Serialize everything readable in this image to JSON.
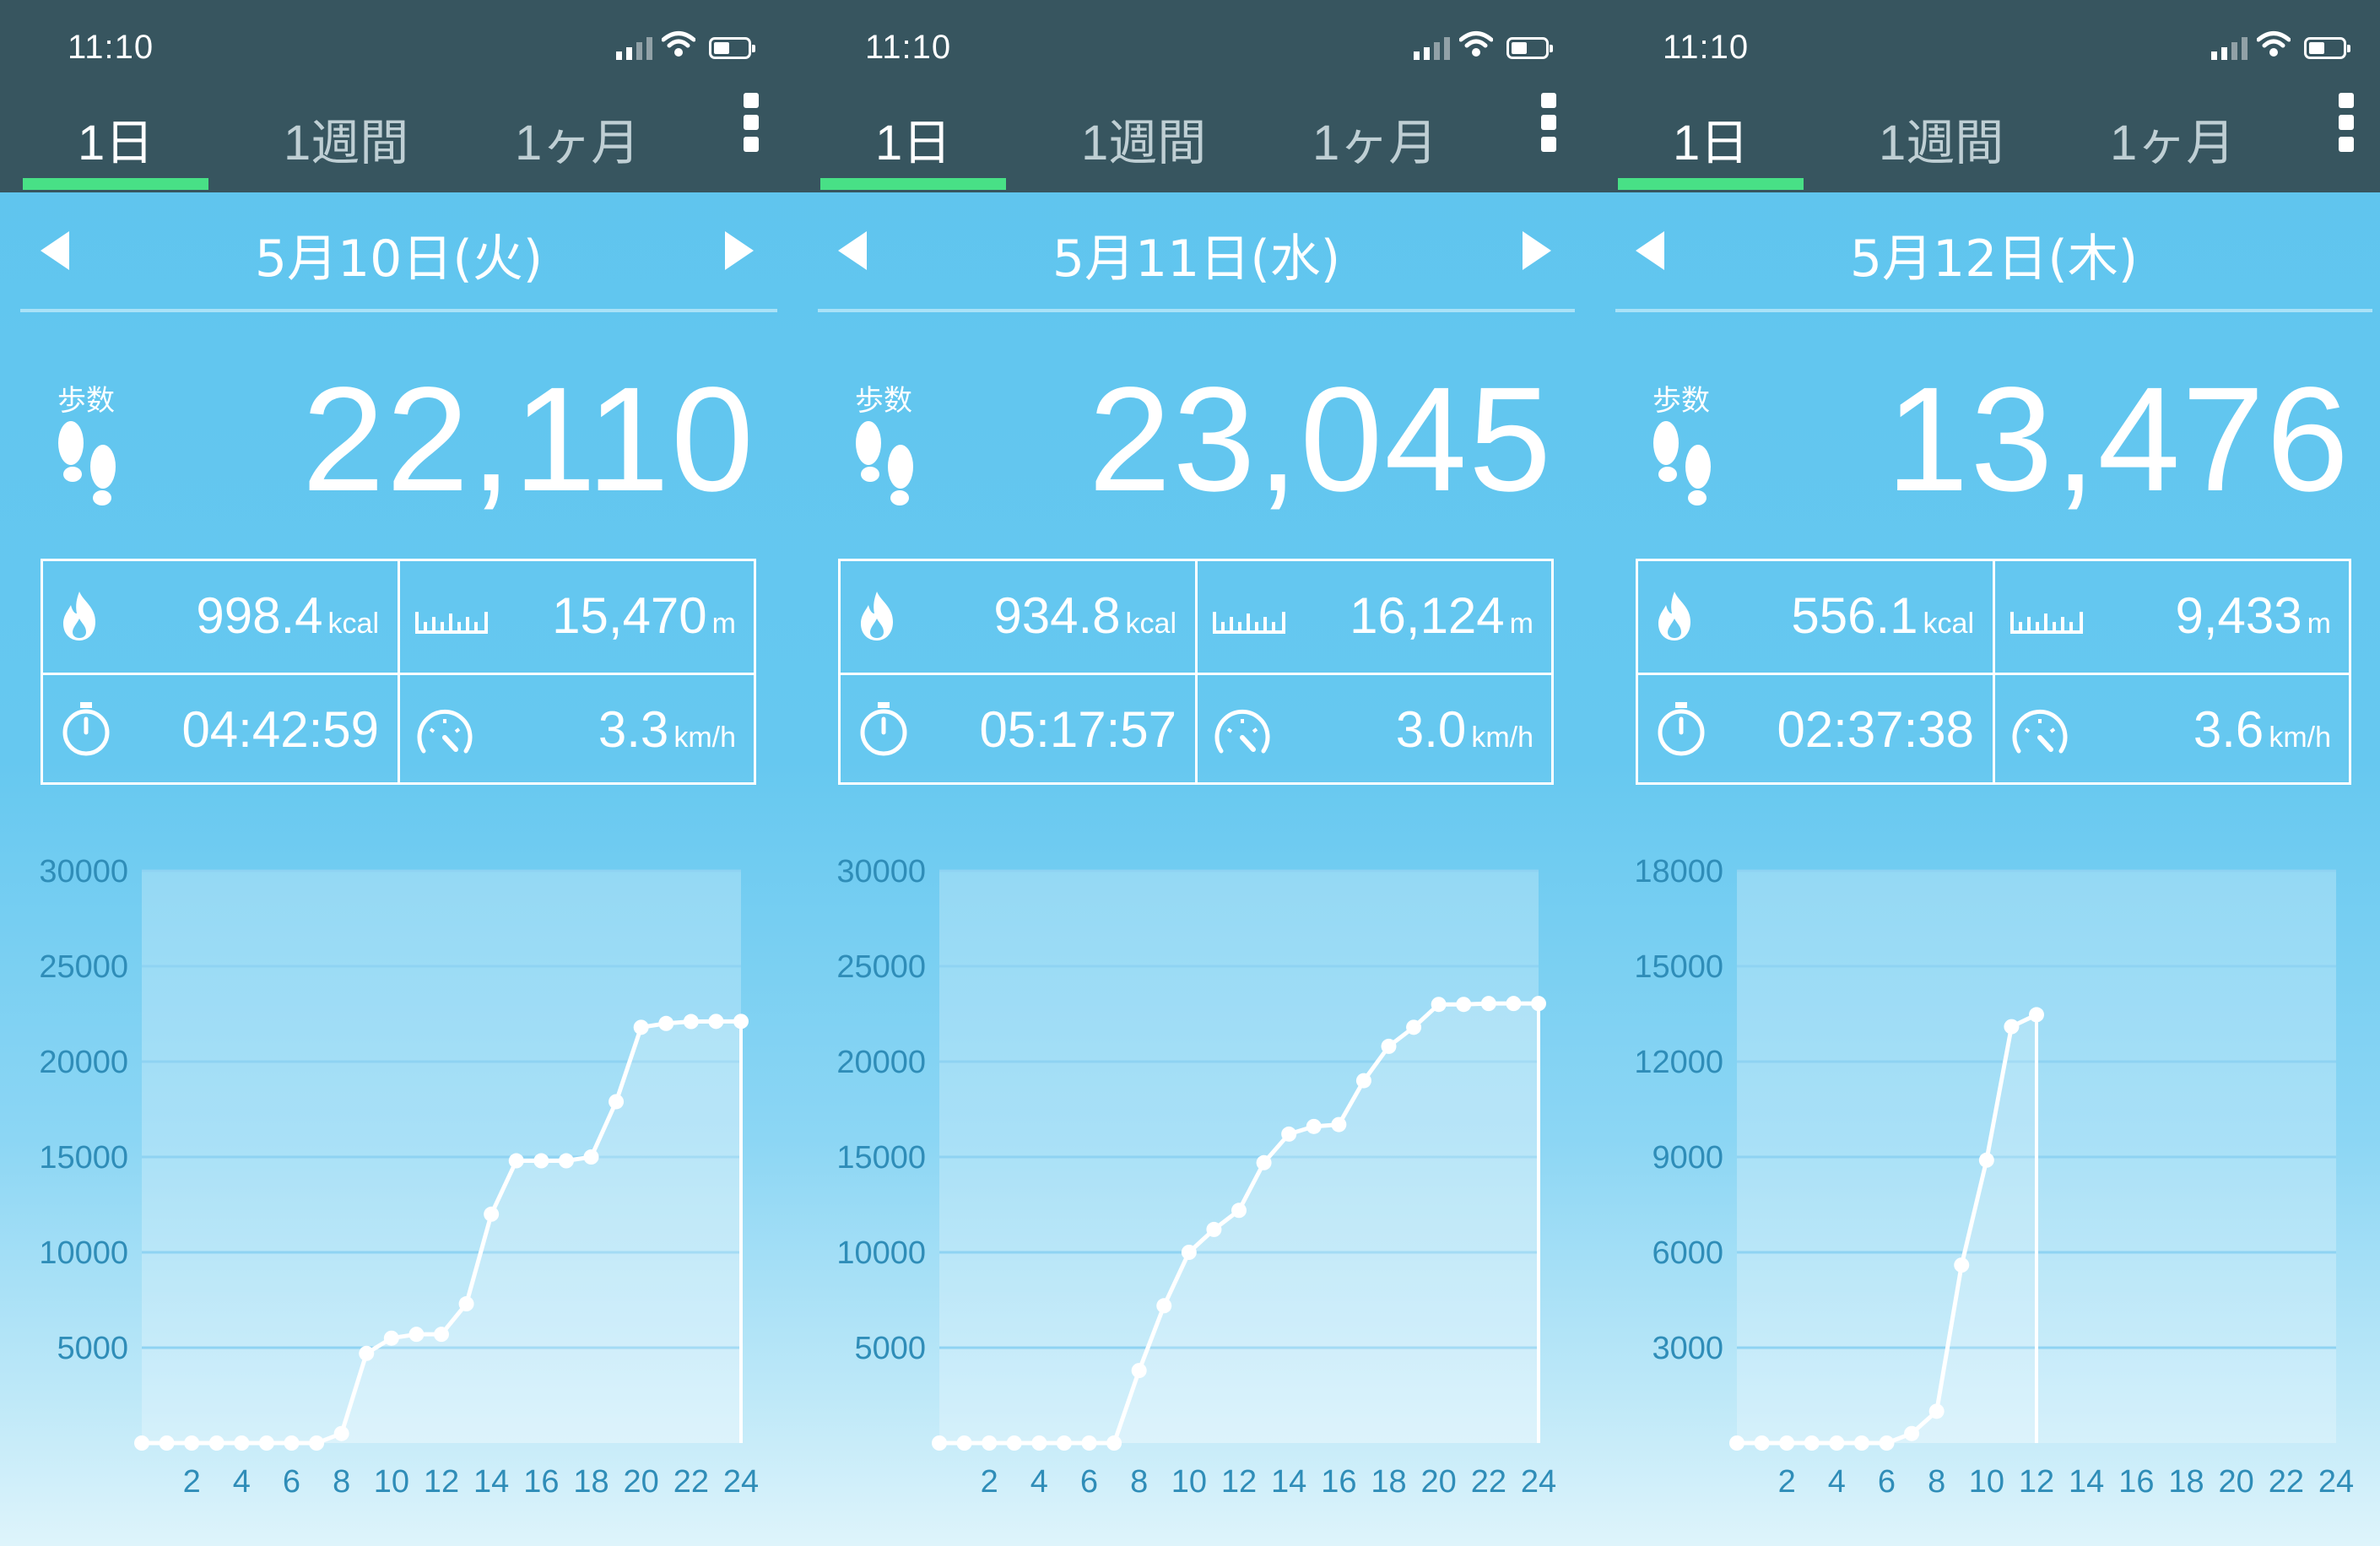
{
  "status": {
    "time": "11:10"
  },
  "tabs": [
    "1日",
    "1週間",
    "1ヶ月"
  ],
  "active_tab": 0,
  "colors": {
    "header": "#37555f",
    "tab_indicator": "#48e086",
    "text": "#ffffff"
  },
  "icons": [
    "signal-icon",
    "wifi-icon",
    "battery-icon",
    "more-menu-icon",
    "prev-day-arrow-icon",
    "next-day-arrow-icon",
    "footprints-icon",
    "flame-icon",
    "ruler-icon",
    "stopwatch-icon",
    "speedometer-icon"
  ],
  "panels": [
    {
      "date": "5月10日(火)",
      "show_next": true,
      "steps_label": "歩数",
      "steps": "22,110",
      "calories": "998.4",
      "calories_unit": "kcal",
      "distance": "15,470",
      "distance_unit": "m",
      "duration": "04:42:59",
      "speed": "3.3",
      "speed_unit": "km/h"
    },
    {
      "date": "5月11日(水)",
      "show_next": true,
      "steps_label": "歩数",
      "steps": "23,045",
      "calories": "934.8",
      "calories_unit": "kcal",
      "distance": "16,124",
      "distance_unit": "m",
      "duration": "05:17:57",
      "speed": "3.0",
      "speed_unit": "km/h"
    },
    {
      "date": "5月12日(木)",
      "show_next": false,
      "steps_label": "歩数",
      "steps": "13,476",
      "calories": "556.1",
      "calories_unit": "kcal",
      "distance": "9,433",
      "distance_unit": "m",
      "duration": "02:37:38",
      "speed": "3.6",
      "speed_unit": "km/h"
    }
  ],
  "chart_data": [
    {
      "type": "line",
      "title": "",
      "xlabel": "",
      "ylabel": "",
      "x_ticks": [
        "2",
        "4",
        "6",
        "8",
        "10",
        "12",
        "14",
        "16",
        "18",
        "20",
        "22",
        "24"
      ],
      "y_ticks": [
        "5000",
        "10000",
        "15000",
        "20000",
        "25000",
        "30000"
      ],
      "xlim": [
        0,
        24
      ],
      "ylim": [
        0,
        30000
      ],
      "x": [
        0,
        1,
        2,
        3,
        4,
        5,
        6,
        7,
        8,
        9,
        10,
        11,
        12,
        13,
        14,
        15,
        16,
        17,
        18,
        19,
        20,
        21,
        22,
        23,
        24
      ],
      "values": [
        0,
        0,
        0,
        0,
        0,
        0,
        0,
        0,
        500,
        4700,
        5500,
        5700,
        5700,
        7300,
        12000,
        14800,
        14800,
        14800,
        15000,
        17900,
        21800,
        22000,
        22100,
        22110,
        22110
      ]
    },
    {
      "type": "line",
      "title": "",
      "xlabel": "",
      "ylabel": "",
      "x_ticks": [
        "2",
        "4",
        "6",
        "8",
        "10",
        "12",
        "14",
        "16",
        "18",
        "20",
        "22",
        "24"
      ],
      "y_ticks": [
        "5000",
        "10000",
        "15000",
        "20000",
        "25000",
        "30000"
      ],
      "xlim": [
        0,
        24
      ],
      "ylim": [
        0,
        30000
      ],
      "x": [
        0,
        1,
        2,
        3,
        4,
        5,
        6,
        7,
        8,
        9,
        10,
        11,
        12,
        13,
        14,
        15,
        16,
        17,
        18,
        19,
        20,
        21,
        22,
        23,
        24
      ],
      "values": [
        0,
        0,
        0,
        0,
        0,
        0,
        0,
        0,
        3800,
        7200,
        10000,
        11200,
        12200,
        14700,
        16200,
        16600,
        16700,
        19000,
        20800,
        21800,
        23000,
        23000,
        23045,
        23045,
        23045
      ]
    },
    {
      "type": "line",
      "title": "",
      "xlabel": "",
      "ylabel": "",
      "x_ticks": [
        "2",
        "4",
        "6",
        "8",
        "10",
        "12",
        "14",
        "16",
        "18",
        "20",
        "22",
        "24"
      ],
      "y_ticks": [
        "3000",
        "6000",
        "9000",
        "12000",
        "15000",
        "18000"
      ],
      "xlim": [
        0,
        24
      ],
      "ylim": [
        0,
        18000
      ],
      "x": [
        0,
        1,
        2,
        3,
        4,
        5,
        6,
        7,
        8,
        9,
        10,
        11,
        12
      ],
      "values": [
        0,
        0,
        0,
        0,
        0,
        0,
        0,
        300,
        1000,
        5600,
        8900,
        13100,
        13476
      ]
    }
  ]
}
